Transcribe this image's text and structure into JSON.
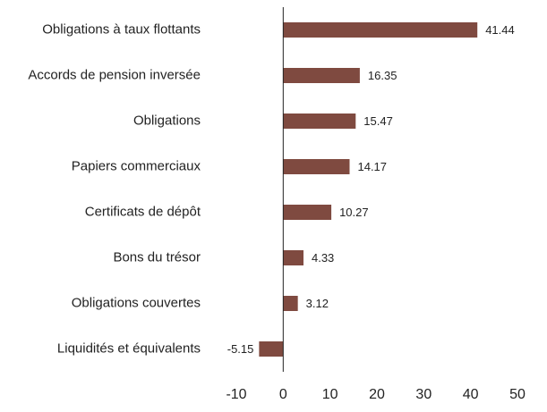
{
  "chart_data": {
    "type": "bar",
    "orientation": "horizontal",
    "categories": [
      "Obligations à taux flottants",
      "Accords de pension inversée",
      "Obligations",
      "Papiers commerciaux",
      "Certificats de dépôt",
      "Bons du trésor",
      "Obligations couvertes",
      "Liquidités et équivalents"
    ],
    "values": [
      41.44,
      16.35,
      15.47,
      14.17,
      10.27,
      4.33,
      3.12,
      -5.15
    ],
    "color": "#7f4a40",
    "xlim": [
      -10,
      50
    ],
    "xticks": [
      -10,
      0,
      10,
      20,
      30,
      40,
      50
    ],
    "grid": false
  }
}
